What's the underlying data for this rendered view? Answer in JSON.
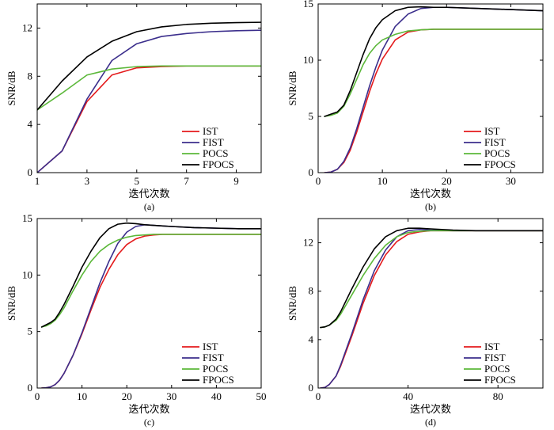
{
  "colors": {
    "IST": "#e41a1c",
    "FIST": "#3b2e8c",
    "POCS": "#5cb83a",
    "FPOCS": "#000000"
  },
  "chart_data": [
    {
      "type": "line",
      "caption": "(a)",
      "xlabel": "迭代次数",
      "ylabel": "SNR/dB",
      "xlim": [
        1,
        10
      ],
      "ylim": [
        0,
        14
      ],
      "xticks": [
        1,
        3,
        5,
        7,
        9
      ],
      "yticks": [
        0,
        4,
        8,
        12
      ],
      "legend": "bottom-right",
      "series": [
        {
          "name": "IST",
          "x": [
            1,
            2,
            3,
            4,
            5,
            6,
            7,
            8,
            9,
            10
          ],
          "values": [
            0,
            1.8,
            5.9,
            8.1,
            8.7,
            8.8,
            8.85,
            8.85,
            8.85,
            8.85
          ]
        },
        {
          "name": "FIST",
          "x": [
            1,
            2,
            3,
            4,
            5,
            6,
            7,
            8,
            9,
            10
          ],
          "values": [
            0,
            1.8,
            6.1,
            9.3,
            10.7,
            11.3,
            11.55,
            11.7,
            11.78,
            11.82
          ]
        },
        {
          "name": "POCS",
          "x": [
            1,
            2,
            3,
            4,
            5,
            6,
            7,
            8,
            9,
            10
          ],
          "values": [
            5.2,
            6.6,
            8.1,
            8.6,
            8.8,
            8.85,
            8.85,
            8.85,
            8.85,
            8.85
          ]
        },
        {
          "name": "FPOCS",
          "x": [
            1,
            2,
            3,
            4,
            5,
            6,
            7,
            8,
            9,
            10
          ],
          "values": [
            5.2,
            7.6,
            9.6,
            10.9,
            11.7,
            12.1,
            12.3,
            12.4,
            12.45,
            12.48
          ]
        }
      ]
    },
    {
      "type": "line",
      "caption": "(b)",
      "xlabel": "迭代次数",
      "ylabel": "SNR/dB",
      "xlim": [
        0,
        35
      ],
      "ylim": [
        0,
        15
      ],
      "xticks": [
        0,
        10,
        20,
        30
      ],
      "yticks": [
        0,
        5,
        10,
        15
      ],
      "legend": "bottom-right",
      "series": [
        {
          "name": "IST",
          "x": [
            1,
            2,
            3,
            4,
            5,
            6,
            7,
            8,
            9,
            10,
            12,
            14,
            16,
            18,
            20,
            25,
            30,
            35
          ],
          "values": [
            0,
            0.05,
            0.3,
            0.9,
            2.0,
            3.6,
            5.4,
            7.2,
            8.8,
            10.1,
            11.8,
            12.5,
            12.7,
            12.75,
            12.75,
            12.75,
            12.75,
            12.75
          ]
        },
        {
          "name": "FIST",
          "x": [
            1,
            2,
            3,
            4,
            5,
            6,
            7,
            8,
            9,
            10,
            12,
            14,
            16,
            18,
            20,
            25,
            30,
            35
          ],
          "values": [
            0,
            0.05,
            0.3,
            1.0,
            2.2,
            3.9,
            5.8,
            7.7,
            9.4,
            10.9,
            13.0,
            14.1,
            14.6,
            14.7,
            14.7,
            14.6,
            14.5,
            14.4
          ]
        },
        {
          "name": "POCS",
          "x": [
            1,
            2,
            3,
            4,
            5,
            6,
            7,
            8,
            9,
            10,
            12,
            14,
            16,
            18,
            20,
            25,
            30,
            35
          ],
          "values": [
            5.0,
            5.1,
            5.3,
            5.9,
            7.0,
            8.3,
            9.6,
            10.6,
            11.3,
            11.8,
            12.3,
            12.6,
            12.7,
            12.75,
            12.75,
            12.75,
            12.75,
            12.75
          ]
        },
        {
          "name": "FPOCS",
          "x": [
            1,
            2,
            3,
            4,
            5,
            6,
            7,
            8,
            9,
            10,
            12,
            14,
            16,
            18,
            20,
            25,
            30,
            35
          ],
          "values": [
            5.0,
            5.2,
            5.4,
            6.0,
            7.3,
            8.9,
            10.5,
            11.9,
            12.9,
            13.6,
            14.4,
            14.7,
            14.75,
            14.7,
            14.7,
            14.6,
            14.5,
            14.4
          ]
        }
      ]
    },
    {
      "type": "line",
      "caption": "(c)",
      "xlabel": "迭代次数",
      "ylabel": "SNR/dB",
      "xlim": [
        0,
        50
      ],
      "ylim": [
        0,
        15
      ],
      "xticks": [
        0,
        10,
        20,
        30,
        40,
        50
      ],
      "yticks": [
        0,
        5,
        10,
        15
      ],
      "legend": "bottom-right",
      "series": [
        {
          "name": "IST",
          "x": [
            1,
            2,
            3,
            4,
            5,
            6,
            8,
            10,
            12,
            14,
            16,
            18,
            20,
            22,
            24,
            26,
            28,
            30,
            35,
            40,
            45,
            50
          ],
          "values": [
            0,
            0.02,
            0.1,
            0.3,
            0.7,
            1.3,
            2.9,
            4.8,
            6.9,
            8.9,
            10.5,
            11.8,
            12.7,
            13.2,
            13.45,
            13.55,
            13.6,
            13.6,
            13.6,
            13.6,
            13.6,
            13.6
          ]
        },
        {
          "name": "FIST",
          "x": [
            1,
            2,
            3,
            4,
            5,
            6,
            8,
            10,
            12,
            14,
            16,
            18,
            20,
            22,
            24,
            26,
            28,
            30,
            35,
            40,
            45,
            50
          ],
          "values": [
            0,
            0.02,
            0.1,
            0.3,
            0.7,
            1.3,
            2.9,
            4.9,
            7.1,
            9.3,
            11.2,
            12.8,
            13.8,
            14.3,
            14.45,
            14.4,
            14.35,
            14.3,
            14.2,
            14.15,
            14.1,
            14.1
          ]
        },
        {
          "name": "POCS",
          "x": [
            1,
            2,
            3,
            4,
            5,
            6,
            8,
            10,
            12,
            14,
            16,
            18,
            20,
            22,
            24,
            26,
            28,
            30,
            35,
            40,
            45,
            50
          ],
          "values": [
            5.4,
            5.5,
            5.7,
            6.0,
            6.5,
            7.1,
            8.6,
            10.0,
            11.2,
            12.1,
            12.7,
            13.1,
            13.35,
            13.5,
            13.55,
            13.6,
            13.6,
            13.6,
            13.6,
            13.6,
            13.6,
            13.6
          ]
        },
        {
          "name": "FPOCS",
          "x": [
            1,
            2,
            3,
            4,
            5,
            6,
            8,
            10,
            12,
            14,
            16,
            18,
            20,
            22,
            24,
            26,
            28,
            30,
            35,
            40,
            45,
            50
          ],
          "values": [
            5.4,
            5.6,
            5.8,
            6.1,
            6.7,
            7.4,
            9.0,
            10.7,
            12.1,
            13.3,
            14.1,
            14.5,
            14.6,
            14.55,
            14.45,
            14.4,
            14.35,
            14.3,
            14.2,
            14.15,
            14.1,
            14.1
          ]
        }
      ]
    },
    {
      "type": "line",
      "caption": "(d)",
      "xlabel": "迭代次数",
      "ylabel": "SNR/dB",
      "xlim": [
        0,
        100
      ],
      "ylim": [
        0,
        14
      ],
      "xticks": [
        0,
        40,
        80
      ],
      "yticks": [
        0,
        4,
        8,
        12
      ],
      "legend": "bottom-right",
      "series": [
        {
          "name": "IST",
          "x": [
            1,
            3,
            5,
            8,
            10,
            15,
            20,
            25,
            30,
            35,
            40,
            45,
            50,
            60,
            70,
            80,
            90,
            100
          ],
          "values": [
            0,
            0.05,
            0.3,
            1.0,
            1.8,
            4.3,
            7.0,
            9.3,
            11.0,
            12.1,
            12.7,
            12.9,
            13.0,
            13.0,
            13.0,
            13.0,
            13.0,
            13.0
          ]
        },
        {
          "name": "FIST",
          "x": [
            1,
            3,
            5,
            8,
            10,
            15,
            20,
            25,
            30,
            35,
            40,
            45,
            50,
            60,
            70,
            80,
            90,
            100
          ],
          "values": [
            0,
            0.05,
            0.3,
            1.0,
            1.9,
            4.5,
            7.3,
            9.7,
            11.4,
            12.5,
            13.0,
            13.1,
            13.05,
            13.0,
            13.0,
            13.0,
            13.0,
            13.0
          ]
        },
        {
          "name": "POCS",
          "x": [
            1,
            3,
            5,
            8,
            10,
            15,
            20,
            25,
            30,
            35,
            40,
            45,
            50,
            60,
            70,
            80,
            90,
            100
          ],
          "values": [
            5.0,
            5.05,
            5.2,
            5.6,
            6.1,
            7.7,
            9.3,
            10.7,
            11.8,
            12.5,
            12.85,
            12.95,
            13.0,
            13.0,
            13.0,
            13.0,
            13.0,
            13.0
          ]
        },
        {
          "name": "FPOCS",
          "x": [
            1,
            3,
            5,
            8,
            10,
            15,
            20,
            25,
            30,
            35,
            40,
            45,
            50,
            60,
            70,
            80,
            90,
            100
          ],
          "values": [
            5.0,
            5.05,
            5.2,
            5.7,
            6.3,
            8.2,
            10.0,
            11.5,
            12.5,
            13.0,
            13.2,
            13.2,
            13.15,
            13.05,
            13.0,
            13.0,
            13.0,
            13.0
          ]
        }
      ]
    }
  ]
}
